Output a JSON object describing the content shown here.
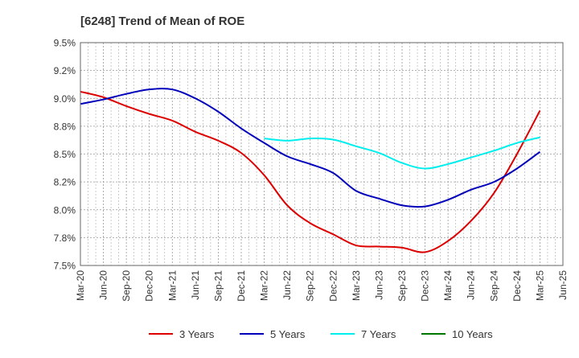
{
  "chart_data": {
    "type": "line",
    "title": "[6248]  Trend of Mean of ROE",
    "xlabel": "",
    "ylabel": "",
    "x_ticks": [
      "Mar-20",
      "Jun-20",
      "Sep-20",
      "Dec-20",
      "Mar-21",
      "Jun-21",
      "Sep-21",
      "Dec-21",
      "Mar-22",
      "Jun-22",
      "Sep-22",
      "Dec-22",
      "Mar-23",
      "Jun-23",
      "Sep-23",
      "Dec-23",
      "Mar-24",
      "Jun-24",
      "Sep-24",
      "Dec-24",
      "Mar-25",
      "Jun-25"
    ],
    "y_ticks": [
      {
        "value": 7.5,
        "label": "7.5%"
      },
      {
        "value": 7.75,
        "label": "7.8%"
      },
      {
        "value": 8.0,
        "label": "8.0%"
      },
      {
        "value": 8.25,
        "label": "8.2%"
      },
      {
        "value": 8.5,
        "label": "8.5%"
      },
      {
        "value": 8.75,
        "label": "8.8%"
      },
      {
        "value": 9.0,
        "label": "9.0%"
      },
      {
        "value": 9.25,
        "label": "9.2%"
      },
      {
        "value": 9.5,
        "label": "9.5%"
      }
    ],
    "ylim": [
      7.5,
      9.5
    ],
    "grid": true,
    "legend_position": "bottom",
    "series": [
      {
        "name": "3 Years",
        "color": "#dd0000",
        "points": [
          [
            "Mar-20",
            9.06
          ],
          [
            "Jun-20",
            9.01
          ],
          [
            "Sep-20",
            8.93
          ],
          [
            "Dec-20",
            8.86
          ],
          [
            "Mar-21",
            8.8
          ],
          [
            "Jun-21",
            8.7
          ],
          [
            "Sep-21",
            8.62
          ],
          [
            "Dec-21",
            8.51
          ],
          [
            "Mar-22",
            8.31
          ],
          [
            "Jun-22",
            8.04
          ],
          [
            "Sep-22",
            7.88
          ],
          [
            "Dec-22",
            7.78
          ],
          [
            "Mar-23",
            7.68
          ],
          [
            "Jun-23",
            7.67
          ],
          [
            "Sep-23",
            7.66
          ],
          [
            "Dec-23",
            7.62
          ],
          [
            "Mar-24",
            7.72
          ],
          [
            "Jun-24",
            7.9
          ],
          [
            "Sep-24",
            8.15
          ],
          [
            "Dec-24",
            8.5
          ],
          [
            "Mar-25",
            8.89
          ]
        ]
      },
      {
        "name": "5 Years",
        "color": "#0000bb",
        "points": [
          [
            "Mar-20",
            8.95
          ],
          [
            "Jun-20",
            8.99
          ],
          [
            "Sep-20",
            9.04
          ],
          [
            "Dec-20",
            9.08
          ],
          [
            "Mar-21",
            9.08
          ],
          [
            "Jun-21",
            9.0
          ],
          [
            "Sep-21",
            8.88
          ],
          [
            "Dec-21",
            8.73
          ],
          [
            "Mar-22",
            8.6
          ],
          [
            "Jun-22",
            8.48
          ],
          [
            "Sep-22",
            8.41
          ],
          [
            "Dec-22",
            8.33
          ],
          [
            "Mar-23",
            8.17
          ],
          [
            "Jun-23",
            8.1
          ],
          [
            "Sep-23",
            8.04
          ],
          [
            "Dec-23",
            8.03
          ],
          [
            "Mar-24",
            8.09
          ],
          [
            "Jun-24",
            8.18
          ],
          [
            "Sep-24",
            8.25
          ],
          [
            "Dec-24",
            8.37
          ],
          [
            "Mar-25",
            8.52
          ]
        ]
      },
      {
        "name": "7 Years",
        "color": "#00eeee",
        "points": [
          [
            "Mar-22",
            8.64
          ],
          [
            "Jun-22",
            8.62
          ],
          [
            "Sep-22",
            8.64
          ],
          [
            "Dec-22",
            8.63
          ],
          [
            "Mar-23",
            8.57
          ],
          [
            "Jun-23",
            8.51
          ],
          [
            "Sep-23",
            8.42
          ],
          [
            "Dec-23",
            8.37
          ],
          [
            "Mar-24",
            8.41
          ],
          [
            "Jun-24",
            8.47
          ],
          [
            "Sep-24",
            8.53
          ],
          [
            "Dec-24",
            8.6
          ],
          [
            "Mar-25",
            8.65
          ]
        ]
      },
      {
        "name": "10 Years",
        "color": "#007700",
        "points": []
      }
    ]
  }
}
